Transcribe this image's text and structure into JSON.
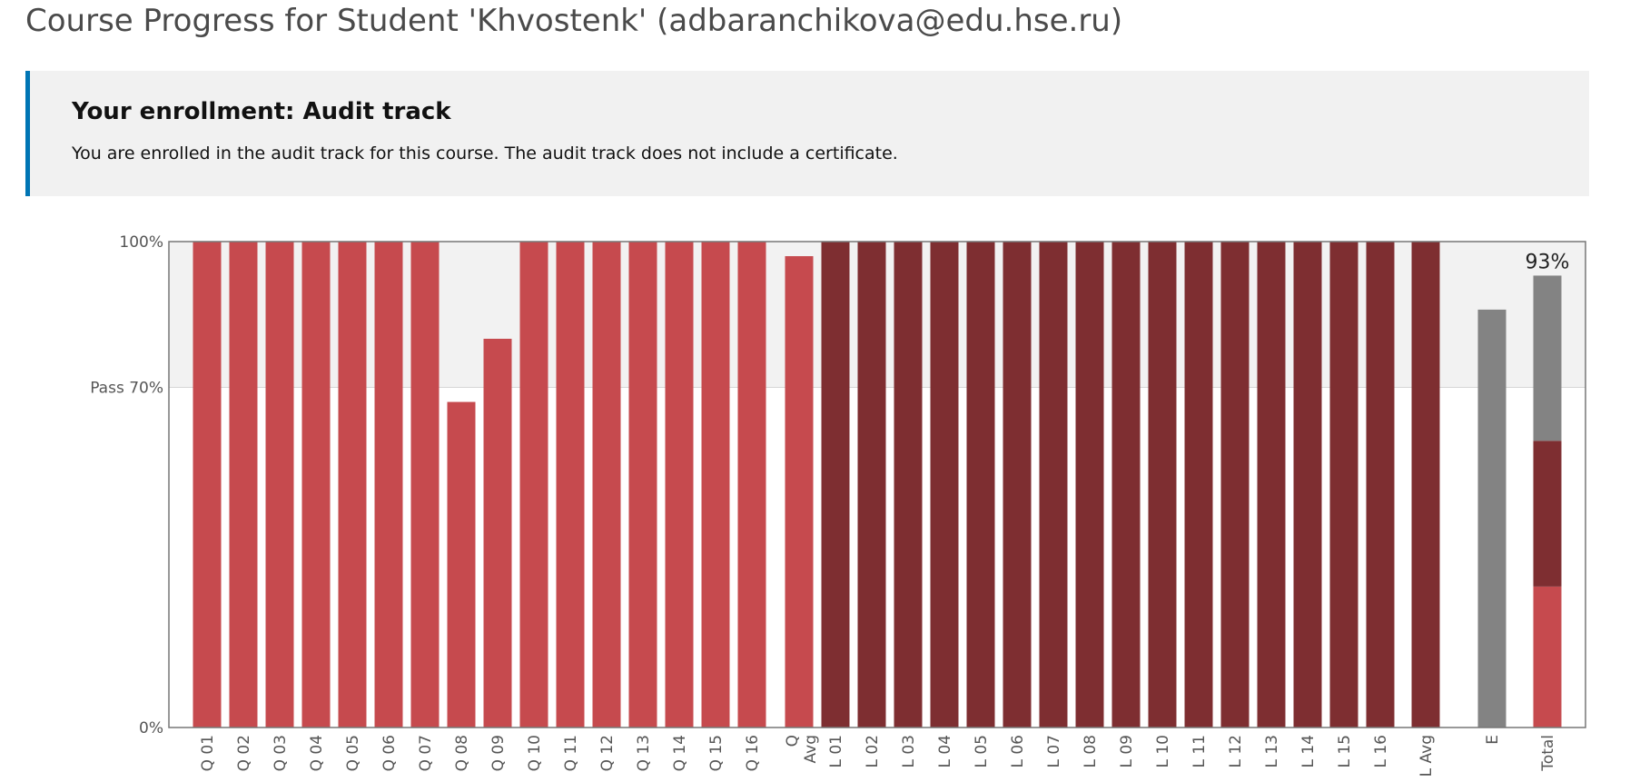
{
  "page": {
    "title": "Course Progress for Student 'Khvostenk' (adbaranchikova@edu.hse.ru)"
  },
  "enrollment": {
    "heading": "Your enrollment: Audit track",
    "message": "You are enrolled in the audit track for this course. The audit track does not include a certificate."
  },
  "colors": {
    "quiz": "#c64a4e",
    "lab": "#7e2e31",
    "exam": "#838383",
    "pass_band": "#f2f2f2",
    "accent": "#0075b4"
  },
  "chart_data": {
    "type": "bar",
    "y_ticks": [
      "100%",
      "Pass 70%",
      "0%"
    ],
    "ylim": [
      0,
      100
    ],
    "pass_threshold": 70,
    "categories": [
      "Q 01",
      "Q 02",
      "Q 03",
      "Q 04",
      "Q 05",
      "Q 06",
      "Q 07",
      "Q 08",
      "Q 09",
      "Q 10",
      "Q 11",
      "Q 12",
      "Q 13",
      "Q 14",
      "Q 15",
      "Q 16",
      "Q Avg",
      "L 01",
      "L 02",
      "L 03",
      "L 04",
      "L 05",
      "L 06",
      "L 07",
      "L 08",
      "L 09",
      "L 10",
      "L 11",
      "L 12",
      "L 13",
      "L 14",
      "L 15",
      "L 16",
      "L Avg",
      "E",
      "Total"
    ],
    "bars": [
      {
        "label": "Q 01",
        "value": 100,
        "group": "quiz"
      },
      {
        "label": "Q 02",
        "value": 100,
        "group": "quiz"
      },
      {
        "label": "Q 03",
        "value": 100,
        "group": "quiz"
      },
      {
        "label": "Q 04",
        "value": 100,
        "group": "quiz"
      },
      {
        "label": "Q 05",
        "value": 100,
        "group": "quiz"
      },
      {
        "label": "Q 06",
        "value": 100,
        "group": "quiz"
      },
      {
        "label": "Q 07",
        "value": 100,
        "group": "quiz"
      },
      {
        "label": "Q 08",
        "value": 67,
        "group": "quiz"
      },
      {
        "label": "Q 09",
        "value": 80,
        "group": "quiz"
      },
      {
        "label": "Q 10",
        "value": 100,
        "group": "quiz"
      },
      {
        "label": "Q 11",
        "value": 100,
        "group": "quiz"
      },
      {
        "label": "Q 12",
        "value": 100,
        "group": "quiz"
      },
      {
        "label": "Q 13",
        "value": 100,
        "group": "quiz"
      },
      {
        "label": "Q 14",
        "value": 100,
        "group": "quiz"
      },
      {
        "label": "Q 15",
        "value": 100,
        "group": "quiz"
      },
      {
        "label": "Q 16",
        "value": 100,
        "group": "quiz"
      },
      {
        "label": "Q Avg",
        "value": 97,
        "group": "quiz"
      },
      {
        "label": "L 01",
        "value": 100,
        "group": "lab"
      },
      {
        "label": "L 02",
        "value": 100,
        "group": "lab"
      },
      {
        "label": "L 03",
        "value": 100,
        "group": "lab"
      },
      {
        "label": "L 04",
        "value": 100,
        "group": "lab"
      },
      {
        "label": "L 05",
        "value": 100,
        "group": "lab"
      },
      {
        "label": "L 06",
        "value": 100,
        "group": "lab"
      },
      {
        "label": "L 07",
        "value": 100,
        "group": "lab"
      },
      {
        "label": "L 08",
        "value": 100,
        "group": "lab"
      },
      {
        "label": "L 09",
        "value": 100,
        "group": "lab"
      },
      {
        "label": "L 10",
        "value": 100,
        "group": "lab"
      },
      {
        "label": "L 11",
        "value": 100,
        "group": "lab"
      },
      {
        "label": "L 12",
        "value": 100,
        "group": "lab"
      },
      {
        "label": "L 13",
        "value": 100,
        "group": "lab"
      },
      {
        "label": "L 14",
        "value": 100,
        "group": "lab"
      },
      {
        "label": "L 15",
        "value": 100,
        "group": "lab"
      },
      {
        "label": "L 16",
        "value": 100,
        "group": "lab"
      },
      {
        "label": "L Avg",
        "value": 100,
        "group": "lab"
      },
      {
        "label": "E",
        "value": 86,
        "group": "exam"
      }
    ],
    "total": {
      "label": "Total",
      "value_label": "93%",
      "segments": [
        {
          "group": "quiz",
          "value": 29
        },
        {
          "group": "lab",
          "value": 30
        },
        {
          "group": "exam",
          "value": 34
        }
      ]
    }
  }
}
